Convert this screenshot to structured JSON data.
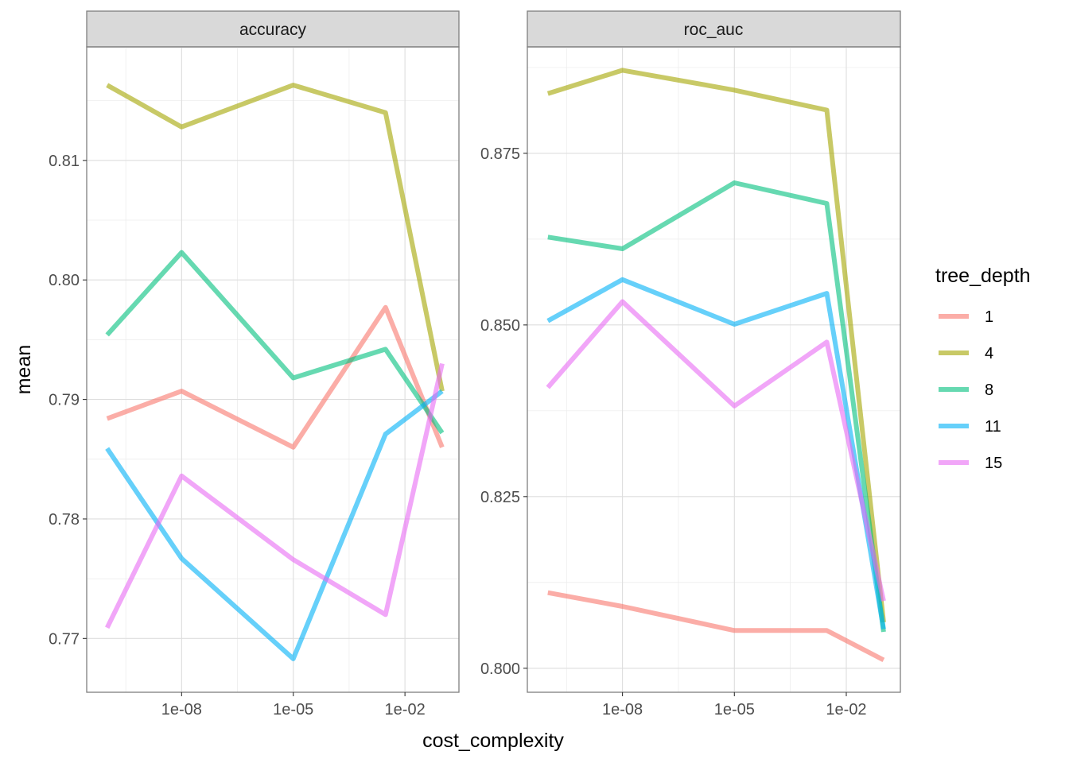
{
  "chart_data": {
    "type": "line",
    "xlabel": "cost_complexity",
    "ylabel": "mean",
    "x_scale": "log10",
    "x_ticks": [
      1e-08,
      1e-05,
      0.01
    ],
    "x_tick_labels": [
      "1e-08",
      "1e-05",
      "1e-02"
    ],
    "x": [
      1e-10,
      1e-08,
      1e-05,
      0.003,
      0.1
    ],
    "legend": {
      "title": "tree_depth",
      "position": "right",
      "entries": [
        "1",
        "4",
        "8",
        "11",
        "15"
      ]
    },
    "colors": {
      "1": "#F8766D",
      "4": "#A3A500",
      "8": "#00BF7D",
      "11": "#00B0F6",
      "15": "#E76BF3"
    },
    "grid": true,
    "panels": [
      {
        "strip": "accuracy",
        "ylim": [
          0.7655,
          0.8195
        ],
        "y_ticks": [
          0.77,
          0.78,
          0.79,
          0.8,
          0.81
        ],
        "y_tick_labels": [
          "0.77",
          "0.78",
          "0.79",
          "0.80",
          "0.81"
        ],
        "series": [
          {
            "name": "1",
            "values": [
              0.7884,
              0.7907,
              0.786,
              0.7977,
              0.786
            ]
          },
          {
            "name": "4",
            "values": [
              0.8163,
              0.8128,
              0.8163,
              0.814,
              0.7907
            ]
          },
          {
            "name": "8",
            "values": [
              0.7954,
              0.8023,
              0.7918,
              0.7942,
              0.7872
            ]
          },
          {
            "name": "11",
            "values": [
              0.7859,
              0.7767,
              0.7683,
              0.7871,
              0.7907
            ]
          },
          {
            "name": "15",
            "values": [
              0.7709,
              0.7836,
              0.7766,
              0.772,
              0.793
            ]
          }
        ]
      },
      {
        "strip": "roc_auc",
        "ylim": [
          0.7965,
          0.8905
        ],
        "y_ticks": [
          0.8,
          0.825,
          0.85,
          0.875
        ],
        "y_tick_labels": [
          "0.800",
          "0.825",
          "0.850",
          "0.875"
        ],
        "series": [
          {
            "name": "1",
            "values": [
              0.811,
              0.809,
              0.8055,
              0.8055,
              0.8012
            ]
          },
          {
            "name": "4",
            "values": [
              0.8837,
              0.8871,
              0.8842,
              0.8813,
              0.8067
            ]
          },
          {
            "name": "8",
            "values": [
              0.8628,
              0.8611,
              0.8707,
              0.8677,
              0.8053
            ]
          },
          {
            "name": "11",
            "values": [
              0.8506,
              0.8566,
              0.8501,
              0.8546,
              0.8057
            ]
          },
          {
            "name": "15",
            "values": [
              0.8409,
              0.8534,
              0.8382,
              0.8475,
              0.8098
            ]
          }
        ]
      }
    ]
  }
}
